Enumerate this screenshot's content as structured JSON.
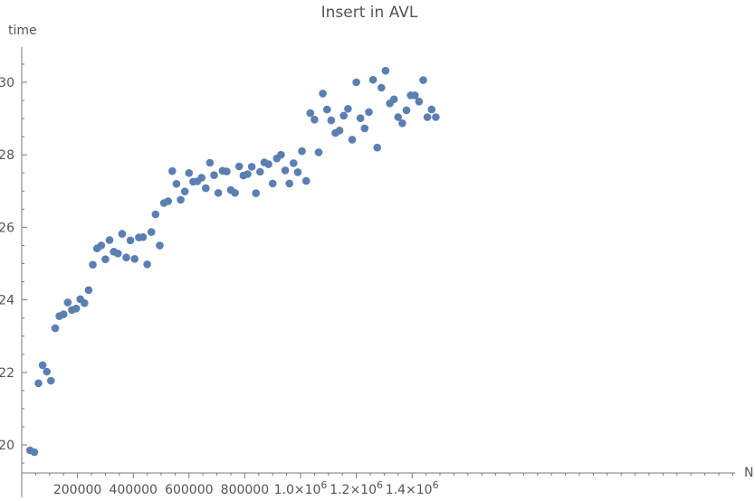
{
  "chart_data": {
    "type": "scatter",
    "title": "Insert in AVL",
    "xlabel": "N",
    "ylabel": "time",
    "xlim": [
      0,
      1500000
    ],
    "ylim": [
      19.2,
      31
    ],
    "grid": false,
    "colors": {
      "points": "#5b7fb2",
      "axes": "#7a7a7a",
      "text": "#555555"
    },
    "x_ticks": [
      {
        "value": 200000,
        "label": "200000"
      },
      {
        "value": 400000,
        "label": "400000"
      },
      {
        "value": 600000,
        "label": "600000"
      },
      {
        "value": 800000,
        "label": "800000"
      },
      {
        "value": 1000000,
        "label": "1.0×10",
        "exp": "6"
      },
      {
        "value": 1200000,
        "label": "1.2×10",
        "exp": "6"
      },
      {
        "value": 1400000,
        "label": "1.4×10",
        "exp": "6"
      }
    ],
    "y_ticks": [
      {
        "value": 20,
        "label": "20"
      },
      {
        "value": 22,
        "label": "22"
      },
      {
        "value": 24,
        "label": "24"
      },
      {
        "value": 26,
        "label": "26"
      },
      {
        "value": 28,
        "label": "28"
      },
      {
        "value": 30,
        "label": "30"
      }
    ],
    "x_minor_step": 50000,
    "y_minor_step": 0.5,
    "series": [
      {
        "points": [
          [
            30000,
            19.85
          ],
          [
            45000,
            19.8
          ],
          [
            60000,
            21.7
          ],
          [
            75000,
            22.2
          ],
          [
            90000,
            22.02
          ],
          [
            105000,
            21.77
          ],
          [
            120000,
            23.22
          ],
          [
            135000,
            23.55
          ],
          [
            150000,
            23.6
          ],
          [
            165000,
            23.93
          ],
          [
            180000,
            23.72
          ],
          [
            195000,
            23.76
          ],
          [
            210000,
            24.02
          ],
          [
            225000,
            23.91
          ],
          [
            240000,
            24.27
          ],
          [
            255000,
            24.97
          ],
          [
            270000,
            25.42
          ],
          [
            285000,
            25.5
          ],
          [
            300000,
            25.12
          ],
          [
            315000,
            25.65
          ],
          [
            330000,
            25.33
          ],
          [
            345000,
            25.28
          ],
          [
            360000,
            25.82
          ],
          [
            375000,
            25.17
          ],
          [
            390000,
            25.64
          ],
          [
            405000,
            25.13
          ],
          [
            420000,
            25.72
          ],
          [
            435000,
            25.73
          ],
          [
            450000,
            24.98
          ],
          [
            465000,
            25.87
          ],
          [
            480000,
            26.36
          ],
          [
            495000,
            25.5
          ],
          [
            510000,
            26.67
          ],
          [
            525000,
            26.72
          ],
          [
            540000,
            27.55
          ],
          [
            555000,
            27.2
          ],
          [
            570000,
            26.76
          ],
          [
            585000,
            26.99
          ],
          [
            600000,
            27.5
          ],
          [
            615000,
            27.26
          ],
          [
            630000,
            27.27
          ],
          [
            645000,
            27.37
          ],
          [
            660000,
            27.08
          ],
          [
            675000,
            27.78
          ],
          [
            690000,
            27.44
          ],
          [
            705000,
            26.95
          ],
          [
            720000,
            27.56
          ],
          [
            735000,
            27.54
          ],
          [
            750000,
            27.03
          ],
          [
            765000,
            26.95
          ],
          [
            780000,
            27.68
          ],
          [
            795000,
            27.43
          ],
          [
            810000,
            27.47
          ],
          [
            825000,
            27.67
          ],
          [
            840000,
            26.94
          ],
          [
            855000,
            27.53
          ],
          [
            870000,
            27.79
          ],
          [
            885000,
            27.74
          ],
          [
            900000,
            27.21
          ],
          [
            915000,
            27.9
          ],
          [
            930000,
            28.0
          ],
          [
            945000,
            27.57
          ],
          [
            960000,
            27.21
          ],
          [
            975000,
            27.77
          ],
          [
            990000,
            27.52
          ],
          [
            1005000,
            28.1
          ],
          [
            1020000,
            27.28
          ],
          [
            1035000,
            29.15
          ],
          [
            1050000,
            28.97
          ],
          [
            1065000,
            28.07
          ],
          [
            1080000,
            29.69
          ],
          [
            1095000,
            29.25
          ],
          [
            1110000,
            28.95
          ],
          [
            1125000,
            28.6
          ],
          [
            1140000,
            28.67
          ],
          [
            1155000,
            29.08
          ],
          [
            1170000,
            29.27
          ],
          [
            1185000,
            28.42
          ],
          [
            1200000,
            30.0
          ],
          [
            1215000,
            29.01
          ],
          [
            1230000,
            28.73
          ],
          [
            1245000,
            29.18
          ],
          [
            1260000,
            30.07
          ],
          [
            1275000,
            28.2
          ],
          [
            1290000,
            29.85
          ],
          [
            1305000,
            30.32
          ],
          [
            1320000,
            29.42
          ],
          [
            1335000,
            29.53
          ],
          [
            1350000,
            29.04
          ],
          [
            1365000,
            28.87
          ],
          [
            1380000,
            29.23
          ],
          [
            1395000,
            29.64
          ],
          [
            1410000,
            29.64
          ],
          [
            1425000,
            29.47
          ],
          [
            1440000,
            30.06
          ],
          [
            1455000,
            29.04
          ],
          [
            1470000,
            29.25
          ],
          [
            1485000,
            29.04
          ]
        ]
      }
    ]
  }
}
